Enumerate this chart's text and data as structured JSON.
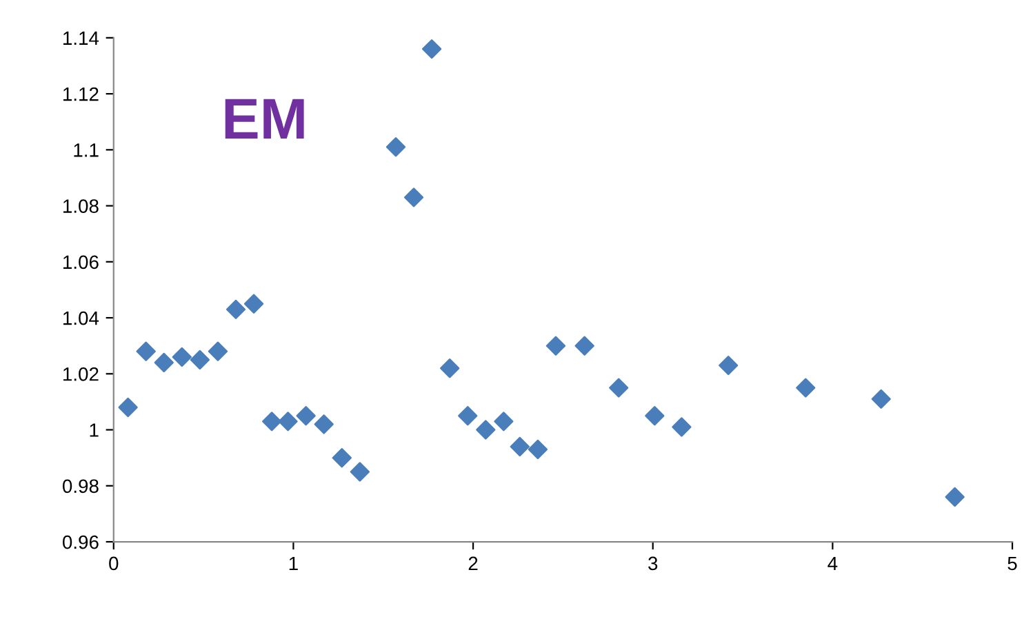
{
  "chart_data": {
    "type": "scatter",
    "title": "EM",
    "x": [
      0.08,
      0.18,
      0.28,
      0.38,
      0.48,
      0.58,
      0.68,
      0.78,
      0.88,
      0.97,
      1.07,
      1.17,
      1.27,
      1.37,
      1.57,
      1.67,
      1.77,
      1.87,
      1.97,
      2.07,
      2.17,
      2.26,
      2.36,
      2.46,
      2.62,
      2.81,
      3.01,
      3.16,
      3.42,
      3.85,
      4.27,
      4.68
    ],
    "series": [
      {
        "color": "#4a7ebb",
        "values": [
          1.008,
          1.028,
          1.024,
          1.026,
          1.025,
          1.028,
          1.043,
          1.045,
          1.003,
          1.003,
          1.005,
          1.002,
          0.99,
          0.985,
          1.101,
          1.083,
          1.136,
          1.022,
          1.005,
          1.0,
          1.003,
          0.994,
          0.993,
          1.03,
          1.03,
          1.015,
          1.005,
          1.001,
          1.023,
          1.015,
          1.011,
          0.976
        ]
      }
    ],
    "xlim": [
      0,
      5
    ],
    "xticks": [
      0,
      1,
      2,
      3,
      4,
      5
    ],
    "ylim": [
      0.96,
      1.14
    ],
    "yticks": [
      0.96,
      0.98,
      1,
      1.02,
      1.04,
      1.06,
      1.08,
      1.1,
      1.12,
      1.14
    ],
    "marker": "diamond",
    "grid": false,
    "legend": false
  }
}
